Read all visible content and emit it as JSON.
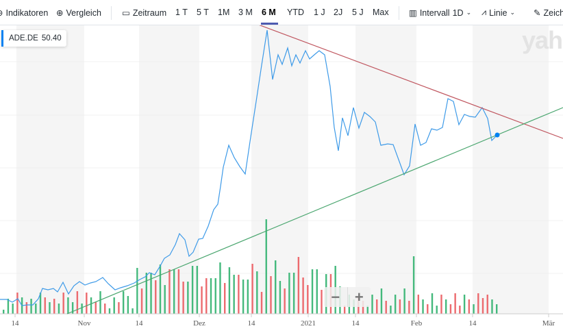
{
  "toolbar": {
    "indicators": "Indikatoren",
    "compare": "Vergleich",
    "range_label": "Zeitraum",
    "ranges": [
      "1 T",
      "5 T",
      "1M",
      "3 M",
      "6 M",
      "YTD",
      "1 J",
      "2J",
      "5 J",
      "Max"
    ],
    "selected_range": "6 M",
    "interval_label": "Intervall",
    "interval_value": "1D",
    "chart_type": "Linie",
    "draw": "Zeich"
  },
  "legend": {
    "symbol": "ADE.DE",
    "price": "50.40",
    "color": "#0081f2"
  },
  "watermark": "yaho",
  "zoom": {
    "minus": "−",
    "plus": "+"
  },
  "colors": {
    "price_line": "#3d9ae8",
    "up": "#44b97c",
    "down": "#ec6a6e",
    "resistance": "#c0565f",
    "support": "#4aa66f"
  },
  "chart_data": {
    "type": "line",
    "x_ticks": [
      "14",
      "Nov",
      "14",
      "Dez",
      "14",
      "2021",
      "14",
      "Feb",
      "14",
      "Mär"
    ],
    "last_price": 50.4,
    "volume_dirs": "gggrgrgggrgrgrggrgrgrgrggrggggrggrggrgrrgggrrgggrggrggrgrgrggrggrrrggrgrggrggrrggrgrggrgrgrgrggrgrrrgrgrrrgg"
  }
}
